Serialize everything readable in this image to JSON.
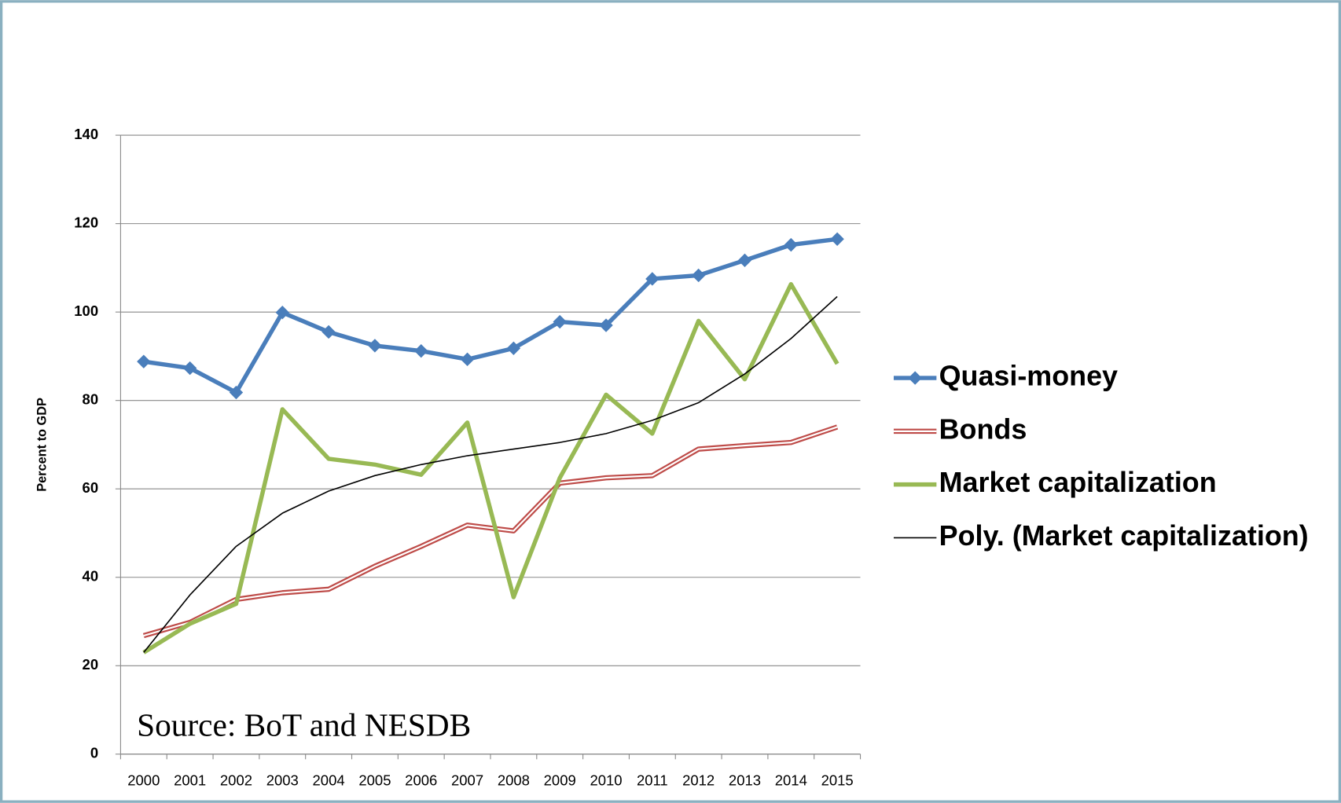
{
  "chart_data": {
    "type": "line",
    "y_label": "Percent to GDP",
    "annotation": "Source: BoT and NESDB",
    "categories": [
      "2000",
      "2001",
      "2002",
      "2003",
      "2004",
      "2005",
      "2006",
      "2007",
      "2008",
      "2009",
      "2010",
      "2011",
      "2012",
      "2013",
      "2014",
      "2015"
    ],
    "ylim": [
      0,
      140
    ],
    "yticks": [
      0,
      20,
      40,
      60,
      80,
      100,
      120,
      140
    ],
    "grid": true,
    "legend": "right",
    "series": [
      {
        "name": "Quasi-money",
        "color": "#4a7ebb",
        "style": "diamond",
        "values": [
          88.8,
          87.3,
          81.8,
          99.9,
          95.5,
          92.4,
          91.2,
          89.3,
          91.8,
          97.8,
          97.0,
          107.5,
          108.3,
          111.7,
          115.2,
          116.5
        ]
      },
      {
        "name": "Bonds",
        "color": "#be4b48",
        "style": "double",
        "values": [
          26.8,
          29.8,
          35.0,
          36.5,
          37.3,
          42.5,
          47.0,
          51.8,
          50.5,
          61.3,
          62.5,
          63.0,
          69.0,
          69.8,
          70.5,
          74.0
        ]
      },
      {
        "name": "Market capitalization",
        "color": "#98b954",
        "style": "thick",
        "values": [
          23.0,
          29.5,
          34.0,
          78.0,
          66.8,
          65.5,
          63.2,
          75.0,
          35.5,
          62.5,
          81.3,
          72.5,
          98.0,
          84.8,
          106.3,
          88.3
        ]
      },
      {
        "name": "Poly. (Market capitalization)",
        "color": "#000000",
        "style": "thin",
        "values": [
          23.0,
          36.0,
          47.0,
          54.5,
          59.5,
          63.0,
          65.5,
          67.5,
          69.0,
          70.5,
          72.5,
          75.5,
          79.5,
          86.0,
          94.0,
          103.5
        ]
      }
    ]
  }
}
